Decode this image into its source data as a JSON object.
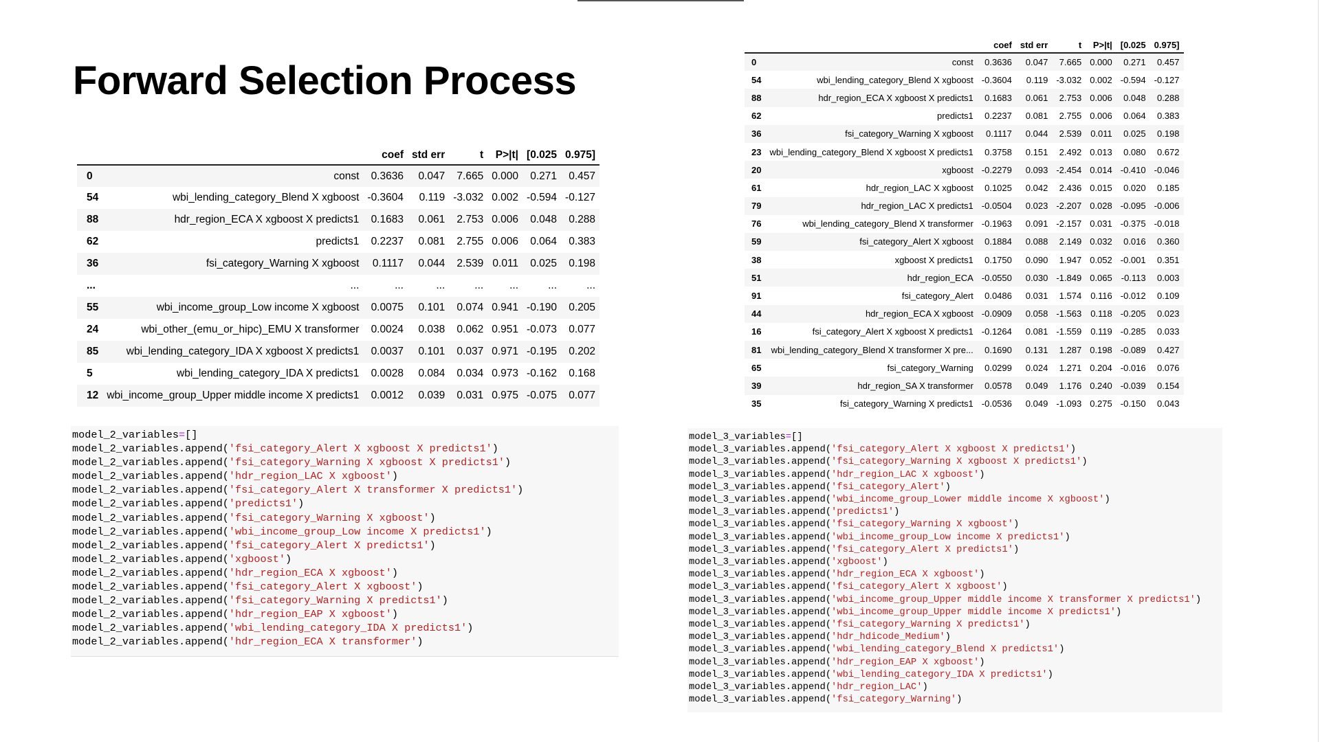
{
  "title": "Forward Selection Process",
  "colors": {
    "string": "#ba2121",
    "operator": "#aa22ff",
    "code_bg": "#f7f7f7",
    "row_shade": "#f5f5f5"
  },
  "columns": [
    "",
    "coef",
    "std err",
    "t",
    "P>|t|",
    "[0.025",
    "0.975]"
  ],
  "model_2_table": [
    [
      "0",
      "const",
      "0.3636",
      "0.047",
      "7.665",
      "0.000",
      "0.271",
      "0.457"
    ],
    [
      "54",
      "wbi_lending_category_Blend X xgboost",
      "-0.3604",
      "0.119",
      "-3.032",
      "0.002",
      "-0.594",
      "-0.127"
    ],
    [
      "88",
      "hdr_region_ECA X xgboost X predicts1",
      "0.1683",
      "0.061",
      "2.753",
      "0.006",
      "0.048",
      "0.288"
    ],
    [
      "62",
      "predicts1",
      "0.2237",
      "0.081",
      "2.755",
      "0.006",
      "0.064",
      "0.383"
    ],
    [
      "36",
      "fsi_category_Warning X xgboost",
      "0.1117",
      "0.044",
      "2.539",
      "0.011",
      "0.025",
      "0.198"
    ],
    [
      "...",
      "...",
      "...",
      "...",
      "...",
      "...",
      "...",
      "..."
    ],
    [
      "55",
      "wbi_income_group_Low income X xgboost",
      "0.0075",
      "0.101",
      "0.074",
      "0.941",
      "-0.190",
      "0.205"
    ],
    [
      "24",
      "wbi_other_(emu_or_hipc)_EMU X transformer",
      "0.0024",
      "0.038",
      "0.062",
      "0.951",
      "-0.073",
      "0.077"
    ],
    [
      "85",
      "wbi_lending_category_IDA X xgboost X predicts1",
      "0.0037",
      "0.101",
      "0.037",
      "0.971",
      "-0.195",
      "0.202"
    ],
    [
      "5",
      "wbi_lending_category_IDA X predicts1",
      "0.0028",
      "0.084",
      "0.034",
      "0.973",
      "-0.162",
      "0.168"
    ],
    [
      "12",
      "wbi_income_group_Upper middle income X predicts1",
      "0.0012",
      "0.039",
      "0.031",
      "0.975",
      "-0.075",
      "0.077"
    ]
  ],
  "model_3_table": [
    [
      "0",
      "const",
      "0.3636",
      "0.047",
      "7.665",
      "0.000",
      "0.271",
      "0.457"
    ],
    [
      "54",
      "wbi_lending_category_Blend X xgboost",
      "-0.3604",
      "0.119",
      "-3.032",
      "0.002",
      "-0.594",
      "-0.127"
    ],
    [
      "88",
      "hdr_region_ECA X xgboost X predicts1",
      "0.1683",
      "0.061",
      "2.753",
      "0.006",
      "0.048",
      "0.288"
    ],
    [
      "62",
      "predicts1",
      "0.2237",
      "0.081",
      "2.755",
      "0.006",
      "0.064",
      "0.383"
    ],
    [
      "36",
      "fsi_category_Warning X xgboost",
      "0.1117",
      "0.044",
      "2.539",
      "0.011",
      "0.025",
      "0.198"
    ],
    [
      "23",
      "wbi_lending_category_Blend X xgboost X predicts1",
      "0.3758",
      "0.151",
      "2.492",
      "0.013",
      "0.080",
      "0.672"
    ],
    [
      "20",
      "xgboost",
      "-0.2279",
      "0.093",
      "-2.454",
      "0.014",
      "-0.410",
      "-0.046"
    ],
    [
      "61",
      "hdr_region_LAC X xgboost",
      "0.1025",
      "0.042",
      "2.436",
      "0.015",
      "0.020",
      "0.185"
    ],
    [
      "79",
      "hdr_region_LAC X predicts1",
      "-0.0504",
      "0.023",
      "-2.207",
      "0.028",
      "-0.095",
      "-0.006"
    ],
    [
      "76",
      "wbi_lending_category_Blend X transformer",
      "-0.1963",
      "0.091",
      "-2.157",
      "0.031",
      "-0.375",
      "-0.018"
    ],
    [
      "59",
      "fsi_category_Alert X xgboost",
      "0.1884",
      "0.088",
      "2.149",
      "0.032",
      "0.016",
      "0.360"
    ],
    [
      "38",
      "xgboost X predicts1",
      "0.1750",
      "0.090",
      "1.947",
      "0.052",
      "-0.001",
      "0.351"
    ],
    [
      "51",
      "hdr_region_ECA",
      "-0.0550",
      "0.030",
      "-1.849",
      "0.065",
      "-0.113",
      "0.003"
    ],
    [
      "91",
      "fsi_category_Alert",
      "0.0486",
      "0.031",
      "1.574",
      "0.116",
      "-0.012",
      "0.109"
    ],
    [
      "44",
      "hdr_region_ECA X xgboost",
      "-0.0909",
      "0.058",
      "-1.563",
      "0.118",
      "-0.205",
      "0.023"
    ],
    [
      "16",
      "fsi_category_Alert X xgboost X predicts1",
      "-0.1264",
      "0.081",
      "-1.559",
      "0.119",
      "-0.285",
      "0.033"
    ],
    [
      "81",
      "wbi_lending_category_Blend X transformer X pre...",
      "0.1690",
      "0.131",
      "1.287",
      "0.198",
      "-0.089",
      "0.427"
    ],
    [
      "65",
      "fsi_category_Warning",
      "0.0299",
      "0.024",
      "1.271",
      "0.204",
      "-0.016",
      "0.076"
    ],
    [
      "39",
      "hdr_region_SA X transformer",
      "0.0578",
      "0.049",
      "1.176",
      "0.240",
      "-0.039",
      "0.154"
    ],
    [
      "35",
      "fsi_category_Warning X predicts1",
      "-0.0536",
      "0.049",
      "-1.093",
      "0.275",
      "-0.150",
      "0.043"
    ]
  ],
  "code_2": {
    "var": "model_2_variables",
    "init": "[]",
    "method": ".append",
    "items": [
      "fsi_category_Alert X xgboost X predicts1",
      "fsi_category_Warning X xgboost X predicts1",
      "hdr_region_LAC X xgboost",
      "fsi_category_Alert X transformer X predicts1",
      "predicts1",
      "fsi_category_Warning X xgboost",
      "wbi_income_group_Low income X predicts1",
      "fsi_category_Alert X predicts1",
      "xgboost",
      "hdr_region_ECA X xgboost",
      "fsi_category_Alert X xgboost",
      "fsi_category_Warning X predicts1",
      "hdr_region_EAP X xgboost",
      "wbi_lending_category_IDA X predicts1",
      "hdr_region_ECA X transformer"
    ]
  },
  "code_3": {
    "var": "model_3_variables",
    "init": "[]",
    "method": ".append",
    "items": [
      "fsi_category_Alert X xgboost X predicts1",
      "fsi_category_Warning X xgboost X predicts1",
      "hdr_region_LAC X xgboost",
      "fsi_category_Alert",
      "wbi_income_group_Lower middle income X xgboost",
      "predicts1",
      "fsi_category_Warning X xgboost",
      "wbi_income_group_Low income X predicts1",
      "fsi_category_Alert X predicts1",
      "xgboost",
      "hdr_region_ECA X xgboost",
      "fsi_category_Alert X xgboost",
      "wbi_income_group_Upper middle income X transformer X predicts1",
      "wbi_income_group_Upper middle income X predicts1",
      "fsi_category_Warning X predicts1",
      "hdr_hdicode_Medium",
      "wbi_lending_category_Blend X predicts1",
      "hdr_region_EAP X xgboost",
      "wbi_lending_category_IDA X predicts1",
      "hdr_region_LAC",
      "fsi_category_Warning"
    ]
  }
}
